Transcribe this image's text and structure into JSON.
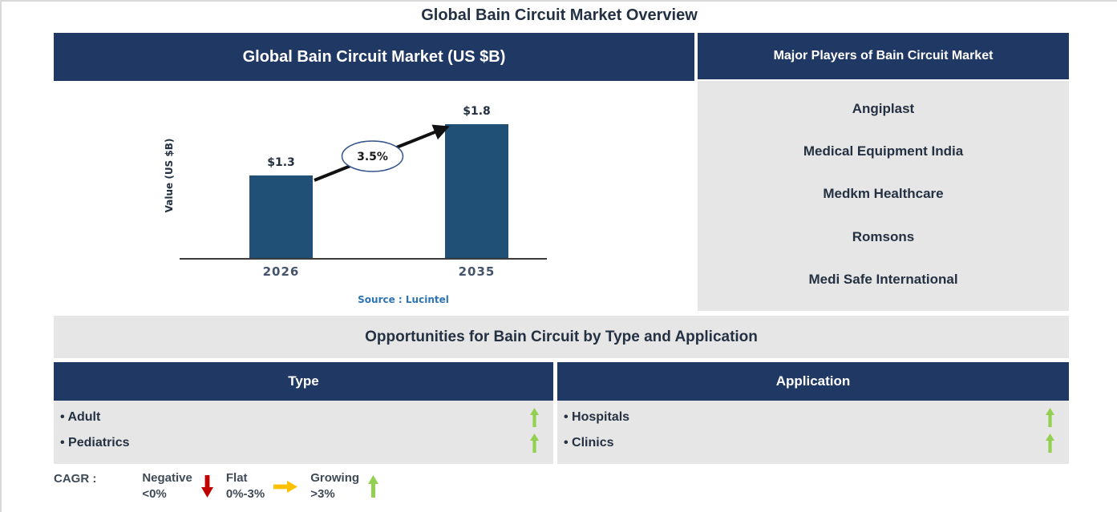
{
  "page": {
    "title": "Global Bain Circuit Market Overview"
  },
  "left_panel": {
    "header": "Global Bain Circuit Market (US $B)"
  },
  "chart_data": {
    "type": "bar",
    "title": "Global Bain Circuit Market (US $B)",
    "categories": [
      "2026",
      "2035"
    ],
    "values": [
      1.3,
      1.8
    ],
    "value_labels": [
      "$1.3",
      "$1.8"
    ],
    "ylabel": "Value (US $B)",
    "ylim": [
      0.5,
      2.0
    ],
    "grid": false,
    "legend_position": "none",
    "cagr": "3.5%",
    "source": "Source : Lucintel",
    "bar_color": "#215077"
  },
  "right_panel": {
    "header": "Major Players of Bain Circuit Market",
    "players": [
      "Angiplast",
      "Medical Equipment India",
      "Medkm Healthcare",
      "Romsons",
      "Medi Safe International"
    ]
  },
  "opportunities": {
    "header": "Opportunities for Bain Circuit by Type and Application",
    "columns": [
      {
        "header": "Type",
        "items": [
          {
            "label": "Adult",
            "trend": "growing"
          },
          {
            "label": "Pediatrics",
            "trend": "growing"
          }
        ]
      },
      {
        "header": "Application",
        "items": [
          {
            "label": "Hospitals",
            "trend": "growing"
          },
          {
            "label": "Clinics",
            "trend": "growing"
          }
        ]
      }
    ]
  },
  "legend": {
    "prefix": "CAGR :",
    "items": [
      {
        "label": "Negative",
        "range": "<0%",
        "arrow": "down",
        "color": "#C00000"
      },
      {
        "label": "Flat",
        "range": "0%-3%",
        "arrow": "right",
        "color": "#FFC000"
      },
      {
        "label": "Growing",
        "range": ">3%",
        "arrow": "up",
        "color": "#92D050"
      }
    ]
  },
  "colors": {
    "navy_header": "#203864",
    "panel_gray": "#E7E6E6",
    "bar_blue": "#215077",
    "green_arrow": "#92D050",
    "red_arrow": "#C00000",
    "yellow_arrow": "#FFC000",
    "source_blue": "#2E74B5",
    "dark_text": "#243142",
    "arrow_line": "#111111",
    "ellipse_stroke": "#34558B"
  }
}
